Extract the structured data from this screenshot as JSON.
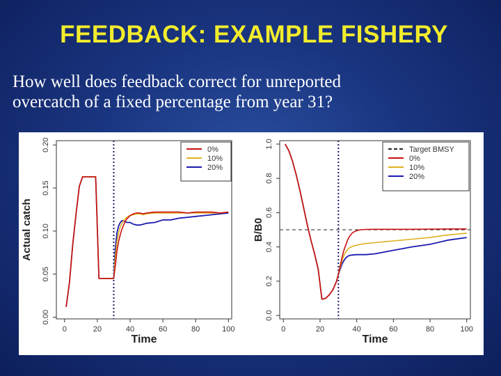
{
  "slide": {
    "title": "FEEDBACK: EXAMPLE FISHERY",
    "subtitle_line1": "How well does feedback correct for unreported",
    "subtitle_line2": "overcatch of a fixed percentage from year 31?"
  },
  "chart_data": [
    {
      "type": "line",
      "xlabel": "Time",
      "ylabel": "Actual catch",
      "xlim": [
        -5,
        102
      ],
      "ylim": [
        -0.002,
        0.205
      ],
      "xticks": [
        0,
        20,
        40,
        60,
        80,
        100
      ],
      "yticks": [
        0.0,
        0.05,
        0.1,
        0.15,
        0.2
      ],
      "ytick_labels": [
        "0.00",
        "0.05",
        "0.10",
        "0.15",
        "0.20"
      ],
      "vline_x": 30,
      "legend_position": "top-right",
      "series": [
        {
          "name": "0%",
          "color": "#c81010",
          "x": [
            1,
            3,
            5,
            7,
            9,
            11,
            13,
            15,
            17,
            19,
            21,
            23,
            25,
            27,
            29,
            30,
            31,
            32,
            33,
            34,
            35,
            36,
            37,
            38,
            40,
            42,
            44,
            46,
            48,
            50,
            55,
            60,
            65,
            70,
            75,
            80,
            85,
            90,
            95,
            100
          ],
          "y": [
            0.012,
            0.04,
            0.085,
            0.12,
            0.152,
            0.163,
            0.163,
            0.163,
            0.163,
            0.163,
            0.045,
            0.045,
            0.045,
            0.045,
            0.045,
            0.045,
            0.06,
            0.077,
            0.088,
            0.096,
            0.102,
            0.107,
            0.111,
            0.114,
            0.118,
            0.12,
            0.121,
            0.121,
            0.12,
            0.121,
            0.122,
            0.122,
            0.122,
            0.122,
            0.121,
            0.122,
            0.122,
            0.122,
            0.121,
            0.122
          ]
        },
        {
          "name": "10%",
          "color": "#e0b020",
          "x": [
            1,
            3,
            5,
            7,
            9,
            11,
            13,
            15,
            17,
            19,
            21,
            23,
            25,
            27,
            29,
            30,
            31,
            32,
            33,
            34,
            35,
            36,
            37,
            38,
            40,
            42,
            44,
            46,
            48,
            50,
            55,
            60,
            65,
            70,
            75,
            80,
            85,
            90,
            95,
            100
          ],
          "y": [
            0.012,
            0.04,
            0.085,
            0.12,
            0.152,
            0.163,
            0.163,
            0.163,
            0.163,
            0.163,
            0.045,
            0.045,
            0.045,
            0.045,
            0.045,
            0.045,
            0.07,
            0.088,
            0.098,
            0.105,
            0.109,
            0.112,
            0.114,
            0.116,
            0.118,
            0.119,
            0.12,
            0.12,
            0.119,
            0.12,
            0.121,
            0.121,
            0.121,
            0.121,
            0.121,
            0.121,
            0.121,
            0.121,
            0.121,
            0.122
          ]
        },
        {
          "name": "20%",
          "color": "#1a1ab0",
          "x": [
            1,
            3,
            5,
            7,
            9,
            11,
            13,
            15,
            17,
            19,
            21,
            23,
            25,
            27,
            29,
            30,
            31,
            32,
            33,
            34,
            35,
            36,
            37,
            38,
            40,
            42,
            44,
            46,
            48,
            50,
            55,
            60,
            65,
            70,
            75,
            80,
            85,
            90,
            95,
            100
          ],
          "y": [
            0.012,
            0.04,
            0.085,
            0.12,
            0.152,
            0.163,
            0.163,
            0.163,
            0.163,
            0.163,
            0.045,
            0.045,
            0.045,
            0.045,
            0.045,
            0.045,
            0.08,
            0.098,
            0.106,
            0.11,
            0.112,
            0.112,
            0.111,
            0.11,
            0.11,
            0.108,
            0.107,
            0.107,
            0.108,
            0.109,
            0.11,
            0.113,
            0.113,
            0.115,
            0.116,
            0.117,
            0.118,
            0.119,
            0.12,
            0.121
          ]
        }
      ]
    },
    {
      "type": "line",
      "xlabel": "Time",
      "ylabel": "B/B0",
      "xlim": [
        -2,
        102
      ],
      "ylim": [
        -0.02,
        1.02
      ],
      "xticks": [
        0,
        20,
        40,
        60,
        80,
        100
      ],
      "yticks": [
        0.0,
        0.2,
        0.4,
        0.6,
        0.8,
        1.0
      ],
      "ytick_labels": [
        "0.0",
        "0.2",
        "0.4",
        "0.6",
        "0.8",
        "1.0"
      ],
      "vline_x": 30,
      "target_line": {
        "name": "Target BMSY",
        "y": 0.5,
        "color": "#222222"
      },
      "legend_position": "top-right",
      "series": [
        {
          "name": "0%",
          "color": "#c81010",
          "x": [
            1,
            3,
            5,
            7,
            9,
            11,
            13,
            15,
            17,
            19,
            21,
            23,
            25,
            27,
            29,
            30,
            31,
            32,
            33,
            34,
            35,
            36,
            37,
            38,
            40,
            42,
            45,
            50,
            55,
            60,
            65,
            70,
            80,
            90,
            100
          ],
          "y": [
            1.0,
            0.96,
            0.9,
            0.82,
            0.73,
            0.63,
            0.53,
            0.44,
            0.36,
            0.27,
            0.095,
            0.1,
            0.12,
            0.15,
            0.2,
            0.24,
            0.29,
            0.34,
            0.38,
            0.41,
            0.44,
            0.46,
            0.475,
            0.485,
            0.495,
            0.5,
            0.502,
            0.503,
            0.503,
            0.503,
            0.503,
            0.503,
            0.504,
            0.505,
            0.505
          ]
        },
        {
          "name": "10%",
          "color": "#e0b020",
          "x": [
            1,
            3,
            5,
            7,
            9,
            11,
            13,
            15,
            17,
            19,
            21,
            23,
            25,
            27,
            29,
            30,
            31,
            32,
            33,
            34,
            35,
            36,
            37,
            38,
            40,
            42,
            45,
            50,
            55,
            60,
            65,
            70,
            80,
            90,
            100
          ],
          "y": [
            1.0,
            0.96,
            0.9,
            0.82,
            0.73,
            0.63,
            0.53,
            0.44,
            0.36,
            0.27,
            0.095,
            0.1,
            0.12,
            0.15,
            0.2,
            0.24,
            0.28,
            0.32,
            0.35,
            0.37,
            0.385,
            0.395,
            0.4,
            0.405,
            0.41,
            0.415,
            0.42,
            0.425,
            0.43,
            0.435,
            0.44,
            0.445,
            0.455,
            0.47,
            0.48
          ]
        },
        {
          "name": "20%",
          "color": "#1a1ab0",
          "x": [
            1,
            3,
            5,
            7,
            9,
            11,
            13,
            15,
            17,
            19,
            21,
            23,
            25,
            27,
            29,
            30,
            31,
            32,
            33,
            34,
            35,
            36,
            37,
            38,
            40,
            42,
            45,
            50,
            55,
            60,
            65,
            70,
            80,
            90,
            100
          ],
          "y": [
            1.0,
            0.96,
            0.9,
            0.82,
            0.73,
            0.63,
            0.53,
            0.44,
            0.36,
            0.27,
            0.095,
            0.1,
            0.12,
            0.15,
            0.2,
            0.24,
            0.27,
            0.3,
            0.32,
            0.335,
            0.345,
            0.35,
            0.352,
            0.353,
            0.355,
            0.355,
            0.355,
            0.36,
            0.37,
            0.38,
            0.39,
            0.4,
            0.415,
            0.44,
            0.455
          ]
        }
      ]
    }
  ]
}
